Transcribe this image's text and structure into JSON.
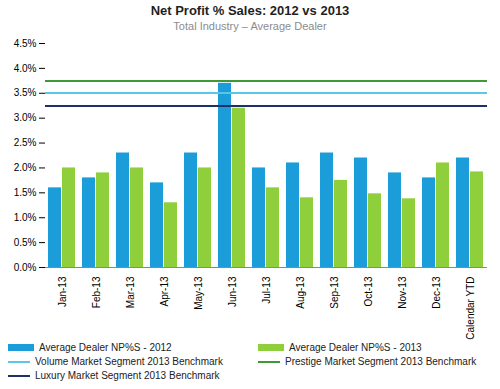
{
  "chart_data": {
    "type": "bar",
    "title": "Net Profit % Sales: 2012 vs 2013",
    "subtitle": "Total Industry – Average Dealer",
    "categories": [
      "Jan-13",
      "Feb-13",
      "Mar-13",
      "Apr-13",
      "May-13",
      "Jun-13",
      "Jul-13",
      "Aug-13",
      "Sep-13",
      "Oct-13",
      "Nov-13",
      "Dec-13",
      "Calendar YTD"
    ],
    "series": [
      {
        "name": "Average Dealer NP%S - 2012",
        "type": "bar",
        "color": "#1b9dd9",
        "values": [
          1.6,
          1.8,
          2.3,
          1.7,
          2.3,
          3.7,
          2.0,
          2.1,
          2.3,
          2.2,
          1.9,
          1.8,
          2.2
        ]
      },
      {
        "name": "Average Dealer NP%S - 2013",
        "type": "bar",
        "color": "#8fcf3c",
        "values": [
          2.0,
          1.9,
          2.0,
          1.3,
          2.0,
          3.2,
          1.6,
          1.4,
          1.75,
          1.48,
          1.38,
          2.1,
          1.92
        ]
      },
      {
        "name": "Volume Market Segment 2013 Benchmark",
        "type": "line",
        "line_style": "solid",
        "color": "#5cc6e8",
        "values": [
          3.5,
          3.5,
          3.5,
          3.5,
          3.5,
          3.5,
          3.5,
          3.5,
          3.5,
          3.5,
          3.5,
          3.5,
          3.5
        ]
      },
      {
        "name": "Prestige Market Segment 2013 Benchmark",
        "type": "line",
        "line_style": "solid",
        "color": "#3f9a35",
        "values": [
          3.75,
          3.75,
          3.75,
          3.75,
          3.75,
          3.75,
          3.75,
          3.75,
          3.75,
          3.75,
          3.75,
          3.75,
          3.75
        ]
      },
      {
        "name": "Luxury Market Segment 2013 Benchmark",
        "type": "line",
        "line_style": "solid",
        "color": "#1f2f6b",
        "values": [
          3.25,
          3.25,
          3.25,
          3.25,
          3.25,
          3.25,
          3.25,
          3.25,
          3.25,
          3.25,
          3.25,
          3.25,
          3.25
        ]
      }
    ],
    "ylim": [
      0,
      4.5
    ],
    "yticks": [
      {
        "value": 0,
        "label": "0.0%"
      },
      {
        "value": 0.5,
        "label": "0.5%"
      },
      {
        "value": 1,
        "label": "1.0%"
      },
      {
        "value": 1.5,
        "label": "1.5%"
      },
      {
        "value": 2,
        "label": "2.0%"
      },
      {
        "value": 2.5,
        "label": "2.5%"
      },
      {
        "value": 3,
        "label": "3.0%"
      },
      {
        "value": 3.5,
        "label": "3.5%"
      },
      {
        "value": 4,
        "label": "4.0%"
      },
      {
        "value": 4.5,
        "label": "4.5%"
      }
    ],
    "grid": false,
    "legend": "bottom"
  }
}
